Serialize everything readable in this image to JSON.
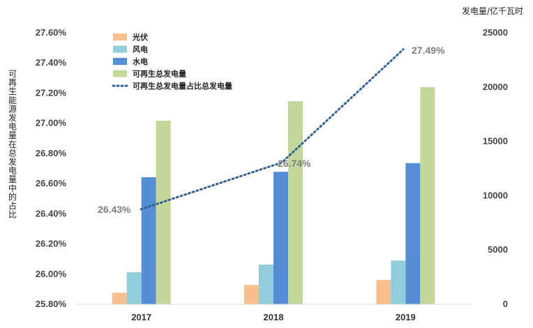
{
  "chart_data": {
    "type": "bar",
    "categories": [
      "2017",
      "2018",
      "2019"
    ],
    "series": [
      {
        "name": "光伏",
        "type": "bar",
        "axis": "right",
        "color": "#f9bf8f",
        "values": [
          1070,
          1780,
          2240
        ]
      },
      {
        "name": "风电",
        "type": "bar",
        "axis": "right",
        "color": "#92cddc",
        "values": [
          2950,
          3650,
          4030
        ]
      },
      {
        "name": "水电",
        "type": "bar",
        "axis": "right",
        "color": "#558ed5",
        "values": [
          11700,
          12200,
          13000
        ]
      },
      {
        "name": "可再生总发电量",
        "type": "bar",
        "axis": "right",
        "color": "#c4d79b",
        "values": [
          16900,
          18700,
          20000
        ]
      },
      {
        "name": "可再生总发电量占比总发电量",
        "type": "line",
        "axis": "left",
        "style": "dotted",
        "color": "#376092",
        "values": [
          26.43,
          26.74,
          27.49
        ],
        "labels": [
          "26.43%",
          "26.74%",
          "27.49%"
        ]
      }
    ],
    "y_left": {
      "label": "可再生能源发电量在总发电量中的占比",
      "range": [
        25.8,
        27.6
      ],
      "ticks": [
        "25.80%",
        "26.00%",
        "26.20%",
        "26.40%",
        "26.60%",
        "26.80%",
        "27.00%",
        "27.20%",
        "27.40%",
        "27.60%"
      ]
    },
    "y_right": {
      "unit": "发电量/亿千瓦时",
      "range": [
        0,
        25000
      ],
      "ticks": [
        "0",
        "5000",
        "10000",
        "15000",
        "20000",
        "25000"
      ]
    },
    "legend_position": "top-left",
    "grid": false
  }
}
